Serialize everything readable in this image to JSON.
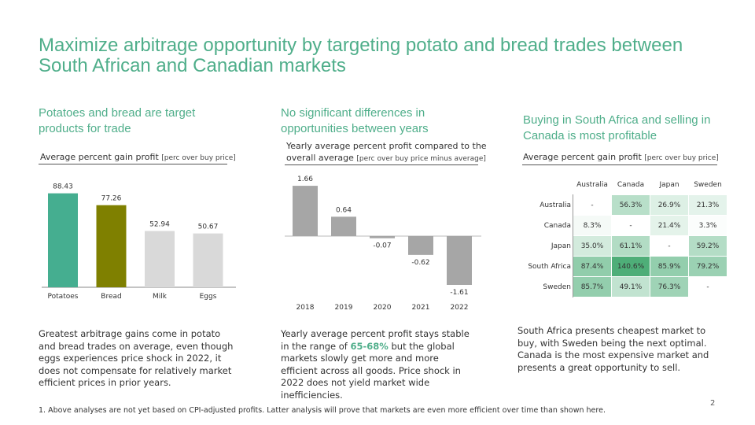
{
  "title": "Maximize arbitrage opportunity by targeting potato and bread trades between South African and Canadian markets",
  "col1": {
    "heading": "Potatoes and bread are target products for trade",
    "chart_label": "Average percent gain profit",
    "chart_unit": "[perc over buy price]",
    "body": "Greatest arbitrage gains come in potato and bread trades on average, even though eggs experiences price shock in 2022, it does not compensate for relatively market efficient prices in prior years."
  },
  "col2": {
    "heading": "No significant differences in opportunities between years",
    "chart_label_1": "Yearly average percent profit compared to the",
    "chart_label_2": "overall average",
    "chart_unit": "[perc over buy price minus average]",
    "body_1": "Yearly average percent profit stays stable in the range of ",
    "body_hl": "65-68%",
    "body_2": " but the global markets slowly get more and more efficient across all goods. Price shock in 2022 does not yield market wide inefficiencies."
  },
  "col3": {
    "heading": "Buying in South Africa and selling in Canada is most profitable",
    "chart_label": "Average percent gain profit",
    "chart_unit": "[perc over buy price]",
    "body": "South Africa presents cheapest market to buy, with Sweden being the next optimal. Canada is the most expensive market and presents a great opportunity to sell."
  },
  "footnote": "1. Above analyses are not yet based on CPI-adjusted profits. Latter analysis will prove that markets are even more efficient over time than shown here.",
  "page_number": "2",
  "colors": {
    "accent": "#4fae8a",
    "potatoes": "#45ae90",
    "bread": "#7f8000",
    "other": "#d9d9d9",
    "year_bar": "#a6a6a6"
  },
  "chart_data": [
    {
      "type": "bar",
      "categories": [
        "Potatoes",
        "Bread",
        "Milk",
        "Eggs"
      ],
      "values": [
        88.43,
        77.26,
        52.94,
        50.67
      ],
      "ylim": [
        0,
        100
      ]
    },
    {
      "type": "bar",
      "categories": [
        "2018",
        "2019",
        "2020",
        "2021",
        "2022"
      ],
      "values": [
        1.66,
        0.64,
        -0.07,
        -0.62,
        -1.61
      ],
      "ylim": [
        -1.8,
        1.8
      ]
    },
    {
      "type": "heatmap",
      "columns": [
        "Australia",
        "Canada",
        "Japan",
        "Sweden"
      ],
      "rows": [
        "Australia",
        "Canada",
        "Japan",
        "South Africa",
        "Sweden"
      ],
      "values": [
        [
          null,
          56.3,
          26.9,
          21.3
        ],
        [
          8.3,
          null,
          21.4,
          3.3
        ],
        [
          35.0,
          61.1,
          null,
          59.2
        ],
        [
          87.4,
          140.6,
          85.9,
          79.2
        ],
        [
          85.7,
          49.1,
          76.3,
          null
        ]
      ],
      "labels": [
        [
          "-",
          "56.3%",
          "26.9%",
          "21.3%"
        ],
        [
          "8.3%",
          "-",
          "21.4%",
          "3.3%"
        ],
        [
          "35.0%",
          "61.1%",
          "-",
          "59.2%"
        ],
        [
          "87.4%",
          "140.6%",
          "85.9%",
          "79.2%"
        ],
        [
          "85.7%",
          "49.1%",
          "76.3%",
          "-"
        ]
      ]
    }
  ]
}
